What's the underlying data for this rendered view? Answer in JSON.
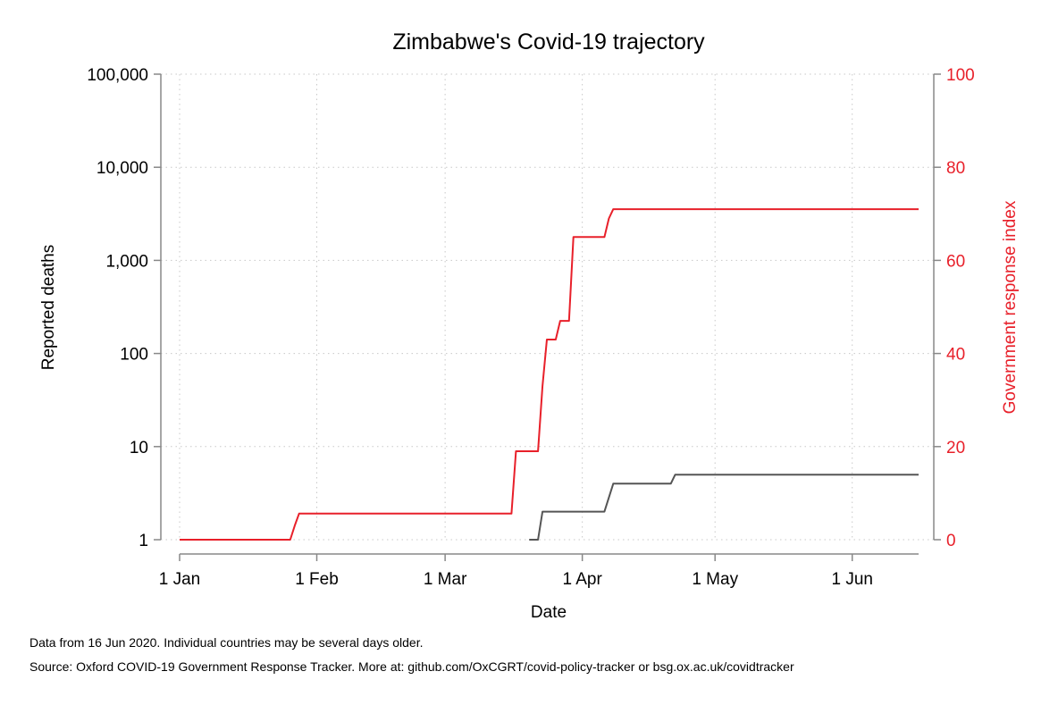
{
  "chart_data": {
    "type": "line",
    "title": "Zimbabwe's Covid-19 trajectory",
    "xlabel": "Date",
    "ylabel_left": "Reported deaths",
    "ylabel_right": "Government response index",
    "x_ticks": [
      "1 Jan",
      "1 Feb",
      "1 Mar",
      "1 Apr",
      "1 May",
      "1 Jun"
    ],
    "xlim": [
      "2020-01-01",
      "2020-06-16"
    ],
    "y_left_scale": "log",
    "y_left_ticks": [
      1,
      10,
      100,
      1000,
      10000,
      100000
    ],
    "y_left_tick_labels": [
      "1",
      "10",
      "100",
      "1,000",
      "10,000",
      "100,000"
    ],
    "y_left_lim": [
      1,
      100000
    ],
    "y_right_ticks": [
      0,
      20,
      40,
      60,
      80,
      100
    ],
    "y_right_lim": [
      0,
      100
    ],
    "grid": true,
    "colors": {
      "deaths": "#555555",
      "response": "#e8202a",
      "right_axis": "#e8202a",
      "axis": "#888888"
    },
    "series": [
      {
        "axis": "right",
        "points": [
          [
            "2020-01-01",
            0
          ],
          [
            "2020-01-26",
            0
          ],
          [
            "2020-01-27",
            3
          ],
          [
            "2020-01-28",
            5.6
          ],
          [
            "2020-03-16",
            5.6
          ],
          [
            "2020-03-17",
            19
          ],
          [
            "2020-03-22",
            19
          ],
          [
            "2020-03-23",
            33
          ],
          [
            "2020-03-24",
            43
          ],
          [
            "2020-03-26",
            43
          ],
          [
            "2020-03-27",
            47
          ],
          [
            "2020-03-29",
            47
          ],
          [
            "2020-03-30",
            65
          ],
          [
            "2020-04-06",
            65
          ],
          [
            "2020-04-07",
            69
          ],
          [
            "2020-04-08",
            71
          ],
          [
            "2020-06-16",
            71
          ]
        ]
      },
      {
        "axis": "left",
        "points": [
          [
            "2020-03-20",
            1
          ],
          [
            "2020-03-22",
            1
          ],
          [
            "2020-03-23",
            2
          ],
          [
            "2020-04-06",
            2
          ],
          [
            "2020-04-08",
            4
          ],
          [
            "2020-04-21",
            4
          ],
          [
            "2020-04-22",
            5
          ],
          [
            "2020-06-16",
            5
          ]
        ]
      }
    ]
  },
  "footnotes": {
    "line1": "Data from 16 Jun 2020. Individual countries may be several days older.",
    "line2": "Source: Oxford COVID-19 Government Response Tracker. More at: github.com/OxCGRT/covid-policy-tracker or bsg.ox.ac.uk/covidtracker"
  }
}
